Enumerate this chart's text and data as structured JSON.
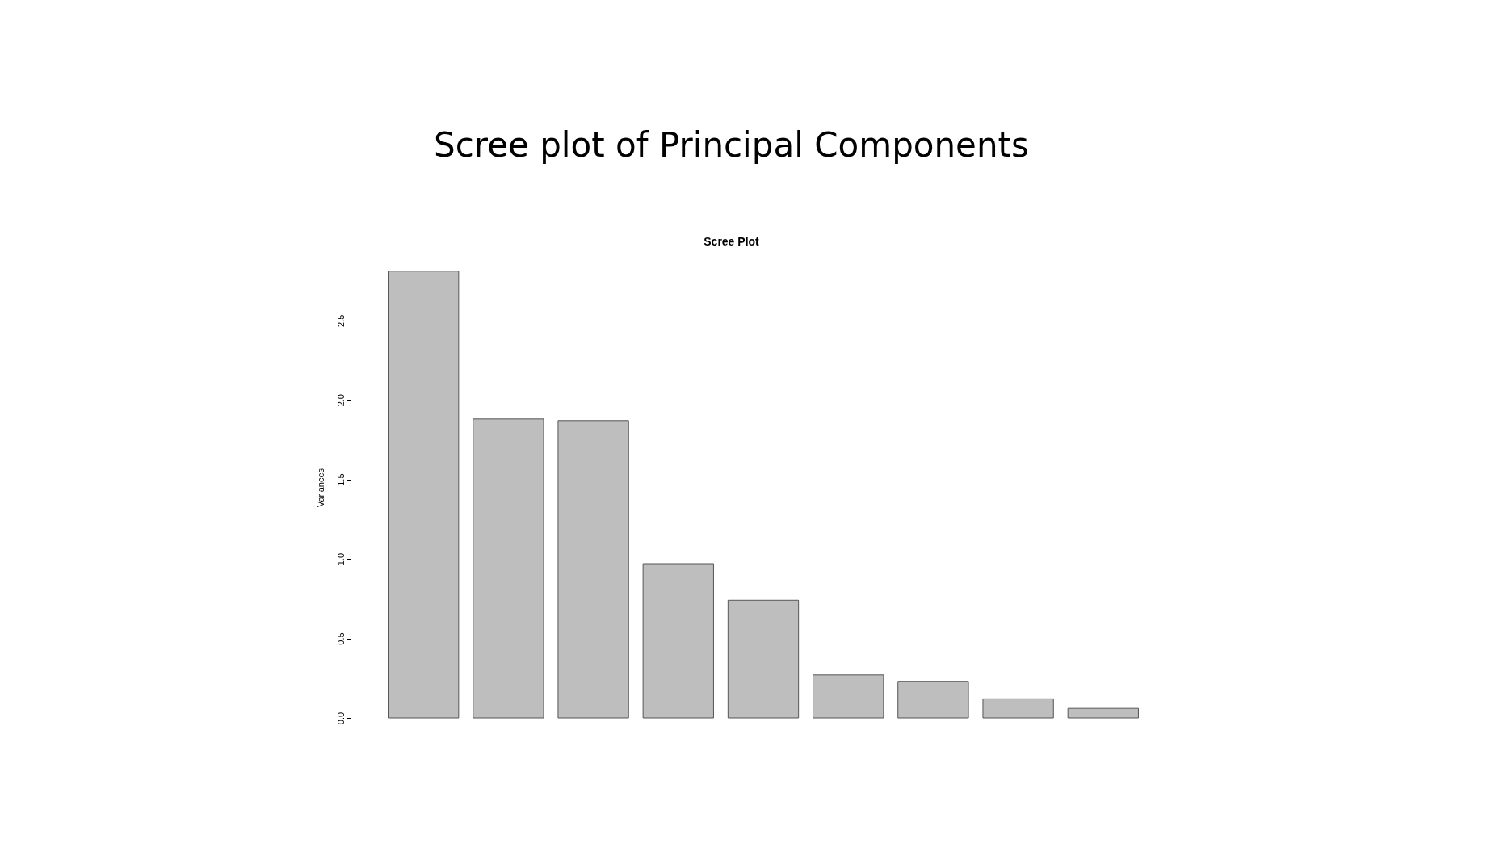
{
  "chart_data": {
    "type": "bar",
    "title": "Scree plot of Principal Components",
    "subtitle": "Scree Plot",
    "ylabel": "Variances",
    "categories": [
      null,
      null,
      null,
      null,
      null,
      null,
      null,
      null,
      null
    ],
    "values": [
      2.81,
      1.88,
      1.87,
      0.97,
      0.74,
      0.27,
      0.23,
      0.12,
      0.06
    ],
    "color": "#bebebe",
    "ylim": [
      0,
      2.9
    ],
    "yticks": [
      {
        "value": 0,
        "label": "0.0"
      },
      0.5,
      {
        "value": 1,
        "label": "1.0"
      },
      1.5,
      {
        "value": 2,
        "label": "2.0"
      },
      2.5
    ],
    "grid": false,
    "tick_labels": "y"
  }
}
